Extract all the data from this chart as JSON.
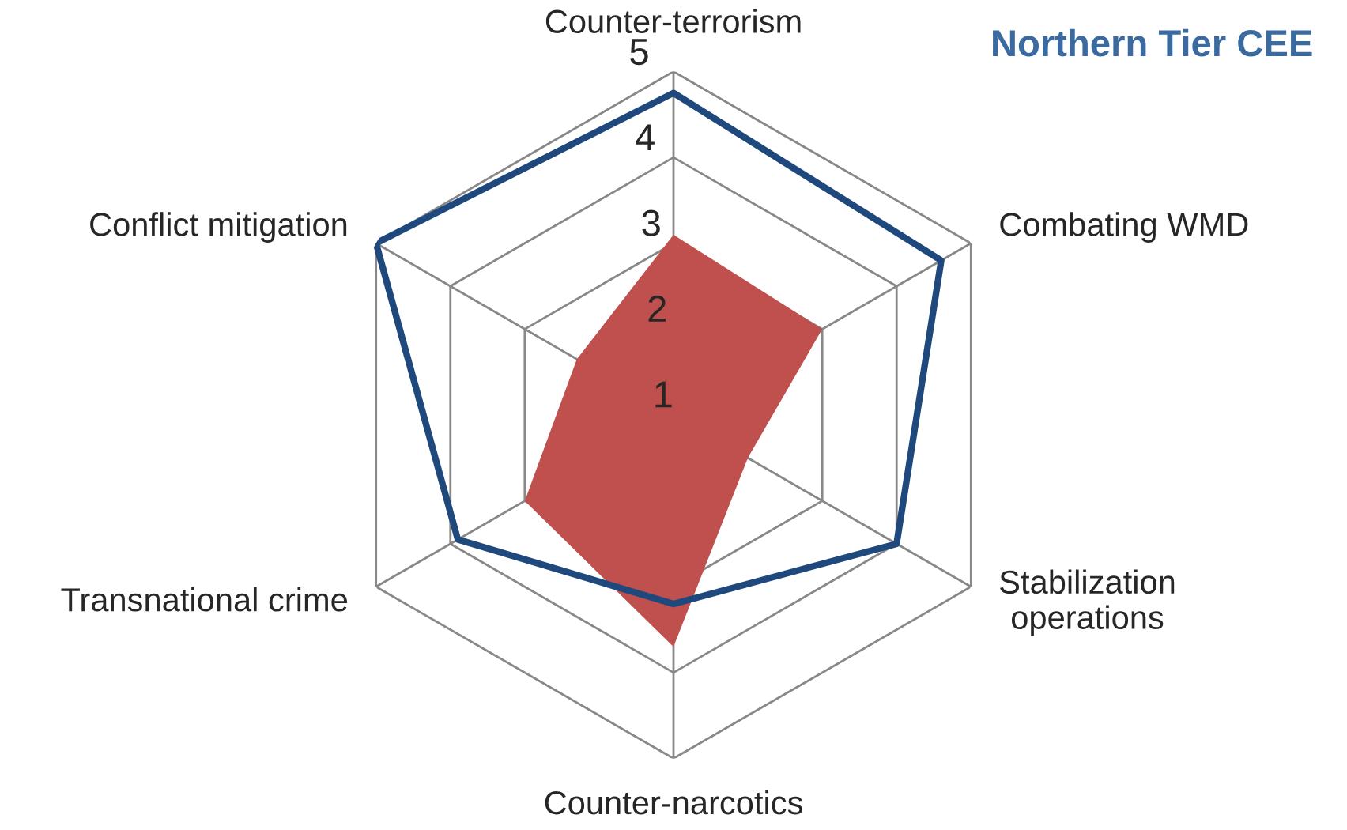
{
  "chart_data": {
    "type": "radar",
    "title": "Northern Tier CEE",
    "categories": [
      "Counter-terrorism",
      "Combating WMD",
      "Stabilization\noperations",
      "Counter-narcotics",
      "Transnational crime",
      "Conflict mitigation"
    ],
    "ylim": [
      1,
      5
    ],
    "yticks": [
      1,
      2,
      3,
      4,
      5
    ],
    "grid": true,
    "series": [
      {
        "type": "area",
        "color": "#c0504d",
        "values": [
          3.1,
          3.0,
          2.0,
          3.7,
          3.0,
          2.3
        ]
      },
      {
        "color": "#1f497d",
        "values": [
          4.75,
          4.6,
          4.0,
          3.2,
          3.9,
          5.0
        ]
      }
    ]
  }
}
